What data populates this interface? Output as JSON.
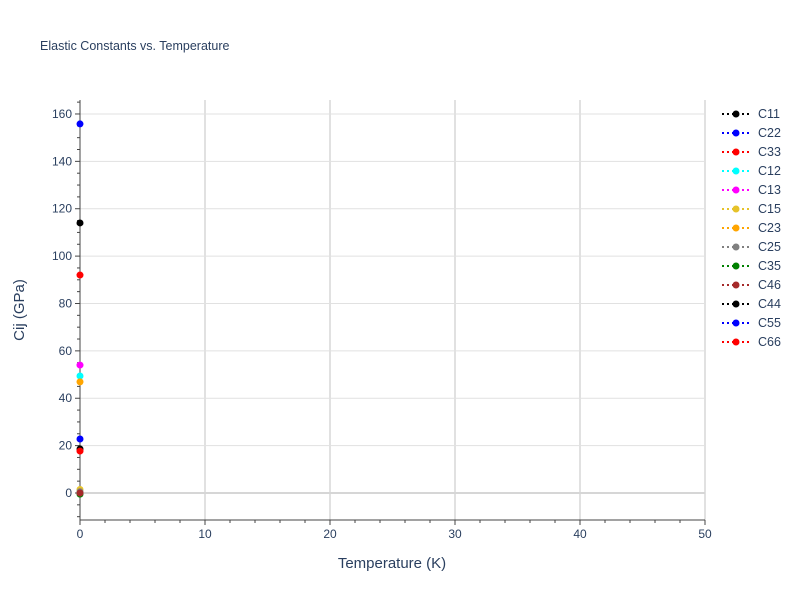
{
  "chart_data": {
    "type": "scatter",
    "title": "Elastic Constants vs. Temperature",
    "xlabel": "Temperature (K)",
    "ylabel": "Cij (GPa)",
    "xlim": [
      0,
      50
    ],
    "ylim": [
      -11.4,
      165.9
    ],
    "xticks": [
      0,
      10,
      20,
      30,
      40,
      50
    ],
    "yticks": [
      0,
      20,
      40,
      60,
      80,
      100,
      120,
      140,
      160
    ],
    "grid": true,
    "legend_position": "right",
    "line_style": "dotted",
    "series": [
      {
        "name": "C11",
        "color": "#000000",
        "x": [
          0
        ],
        "y": [
          114.0
        ]
      },
      {
        "name": "C22",
        "color": "#0000ff",
        "x": [
          0
        ],
        "y": [
          155.8
        ]
      },
      {
        "name": "C33",
        "color": "#ff0000",
        "x": [
          0
        ],
        "y": [
          92.0
        ]
      },
      {
        "name": "C12",
        "color": "#00ffff",
        "x": [
          0
        ],
        "y": [
          49.4
        ]
      },
      {
        "name": "C13",
        "color": "#ff00ff",
        "x": [
          0
        ],
        "y": [
          54.0
        ]
      },
      {
        "name": "C15",
        "color": "#e6c229",
        "x": [
          0
        ],
        "y": [
          1.5
        ]
      },
      {
        "name": "C23",
        "color": "#ffa500",
        "x": [
          0
        ],
        "y": [
          46.9
        ]
      },
      {
        "name": "C25",
        "color": "#808080",
        "x": [
          0
        ],
        "y": [
          0.5
        ]
      },
      {
        "name": "C35",
        "color": "#008000",
        "x": [
          0
        ],
        "y": [
          -0.5
        ]
      },
      {
        "name": "C46",
        "color": "#a52a2a",
        "x": [
          0
        ],
        "y": [
          0.0
        ]
      },
      {
        "name": "C44",
        "color": "#000000",
        "x": [
          0
        ],
        "y": [
          18.6
        ]
      },
      {
        "name": "C55",
        "color": "#0000ff",
        "x": [
          0
        ],
        "y": [
          22.8
        ]
      },
      {
        "name": "C66",
        "color": "#ff0000",
        "x": [
          0
        ],
        "y": [
          17.7
        ]
      }
    ]
  }
}
